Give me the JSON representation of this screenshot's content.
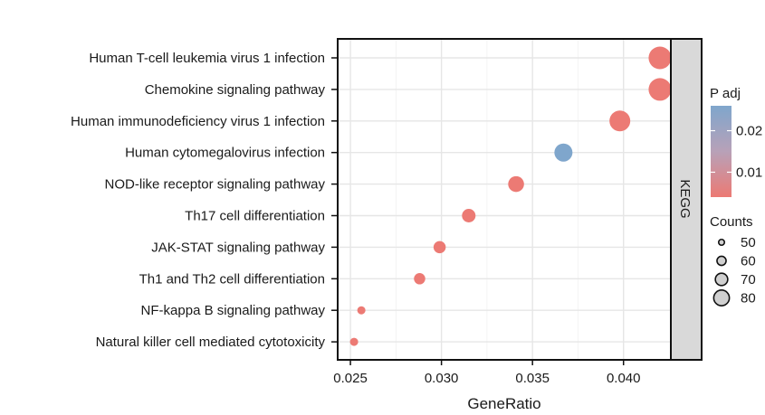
{
  "chart_data": {
    "type": "scatter",
    "title": "",
    "xlabel": "GeneRatio",
    "ylabel": "",
    "xlim": [
      0.0243,
      0.0426
    ],
    "x_ticks": [
      "0.025",
      "0.030",
      "0.035",
      "0.040"
    ],
    "x_tick_values": [
      0.025,
      0.03,
      0.035,
      0.04
    ],
    "facet_label": "KEGG",
    "grid": true,
    "legend_placement": "right",
    "categories": [
      "Human T-cell leukemia virus 1 infection",
      "Chemokine signaling pathway",
      "Human immunodeficiency virus 1 infection",
      "Human cytomegalovirus infection",
      "NOD-like receptor signaling pathway",
      "Th17 cell differentiation",
      "JAK-STAT signaling pathway",
      "Th1 and Th2 cell differentiation",
      "NF-kappa B signaling pathway",
      "Natural killer cell mediated cytotoxicity"
    ],
    "points": [
      {
        "term": "Human T-cell leukemia virus 1 infection",
        "x": 0.042,
        "count": 82,
        "padj": 0.004
      },
      {
        "term": "Chemokine signaling pathway",
        "x": 0.042,
        "count": 82,
        "padj": 0.004
      },
      {
        "term": "Human immunodeficiency virus 1 infection",
        "x": 0.0398,
        "count": 78,
        "padj": 0.004
      },
      {
        "term": "Human cytomegalovirus infection",
        "x": 0.0367,
        "count": 72,
        "padj": 0.026
      },
      {
        "term": "NOD-like receptor signaling pathway",
        "x": 0.0341,
        "count": 67,
        "padj": 0.004
      },
      {
        "term": "Th17 cell differentiation",
        "x": 0.0315,
        "count": 62,
        "padj": 0.004
      },
      {
        "term": "JAK-STAT signaling pathway",
        "x": 0.0299,
        "count": 59,
        "padj": 0.004
      },
      {
        "term": "Th1 and Th2 cell differentiation",
        "x": 0.0288,
        "count": 57,
        "padj": 0.004
      },
      {
        "term": "NF-kappa B signaling pathway",
        "x": 0.0256,
        "count": 50,
        "padj": 0.004
      },
      {
        "term": "Natural killer cell mediated cytotoxicity",
        "x": 0.0252,
        "count": 49,
        "padj": 0.004
      }
    ],
    "color_legend": {
      "title": "P adj",
      "ticks": [
        "0.02",
        "0.01"
      ],
      "tick_values": [
        0.02,
        0.01
      ],
      "range": [
        0.004,
        0.026
      ],
      "low_color": "#ec7a74",
      "high_color": "#7fa6cc"
    },
    "size_legend": {
      "title": "Counts",
      "values": [
        50,
        60,
        70,
        80
      ],
      "labels": [
        "50",
        "60",
        "70",
        "80"
      ]
    },
    "colors": {
      "panel_border": "#111111",
      "grid": "#e6e6e6",
      "strip": "#d9d9d9"
    }
  }
}
